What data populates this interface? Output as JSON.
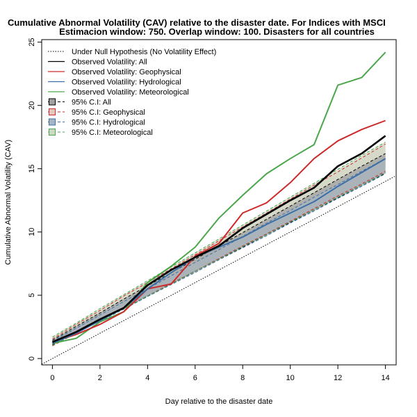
{
  "chart_data": {
    "type": "line",
    "title": "Cumulative Abnormal Volatility (CAV) relative to the disaster date. For Indices with MSCI",
    "subtitle": "Estimacion window: 750. Overlap window: 100. Disasters for all countries",
    "xlabel": "Day relative to the disaster date",
    "ylabel": "Cumulative Abnormal Volatility (CAV)",
    "xlim": [
      -0.45,
      14.45
    ],
    "ylim": [
      -0.5,
      25.2
    ],
    "xticks": [
      "0",
      "2",
      "4",
      "6",
      "8",
      "10",
      "12",
      "14"
    ],
    "yticks": [
      "0",
      "5",
      "10",
      "15",
      "20",
      "25"
    ],
    "grid": false,
    "legend_position": "top-left",
    "x": [
      0,
      1,
      2,
      3,
      4,
      5,
      6,
      7,
      8,
      9,
      10,
      11,
      12,
      13,
      14
    ],
    "null_hypothesis": {
      "name": "Under Null Hypothesis (No Volatility Effect)",
      "slope": 1,
      "color": "#000000"
    },
    "series": [
      {
        "name": "Observed Volatility: All",
        "color": "#000000",
        "values": [
          1.3,
          2.1,
          3.1,
          4.0,
          5.8,
          7.0,
          8.0,
          8.9,
          10.3,
          11.4,
          12.5,
          13.5,
          15.2,
          16.2,
          17.6
        ]
      },
      {
        "name": "Observed Volatility: Geophysical",
        "color": "#cc2a2a",
        "values": [
          1.3,
          1.9,
          2.7,
          3.7,
          5.5,
          5.9,
          8.1,
          9.1,
          11.5,
          12.3,
          13.9,
          15.8,
          17.2,
          18.1,
          18.8
        ]
      },
      {
        "name": "Observed Volatility: Hydrological",
        "color": "#3b6fa8",
        "values": [
          1.2,
          2.0,
          3.0,
          4.0,
          5.5,
          6.8,
          8.0,
          8.8,
          9.6,
          10.6,
          11.5,
          12.4,
          13.6,
          14.7,
          15.8
        ]
      },
      {
        "name": "Observed Volatility: Meteorological",
        "color": "#4aa64a",
        "values": [
          1.2,
          1.6,
          2.9,
          3.7,
          6.0,
          7.3,
          8.8,
          11.1,
          12.9,
          14.6,
          15.8,
          16.9,
          21.6,
          22.2,
          24.2
        ]
      }
    ],
    "confidence_intervals": [
      {
        "name": "95% C.I: All",
        "color": "#000000",
        "fill": "#a0a0a0",
        "lower": [
          1.1,
          2.05,
          3.0,
          3.95,
          4.95,
          5.9,
          6.9,
          7.85,
          8.8,
          9.8,
          10.75,
          11.75,
          12.7,
          13.7,
          14.65
        ],
        "upper": [
          1.45,
          2.55,
          3.6,
          4.7,
          5.75,
          6.8,
          7.85,
          8.9,
          9.95,
          11.0,
          12.05,
          13.1,
          14.15,
          15.2,
          16.2
        ]
      },
      {
        "name": "95% C.I: Geophysical",
        "color": "#cc2a2a",
        "fill": "#e2c8bf",
        "lower": [
          1.0,
          2.0,
          3.0,
          3.95,
          4.95,
          5.95,
          6.9,
          7.9,
          8.9,
          9.85,
          10.85,
          11.85,
          12.85,
          13.8,
          14.8
        ],
        "upper": [
          1.55,
          2.7,
          3.8,
          4.95,
          6.0,
          7.1,
          8.2,
          9.3,
          10.4,
          11.5,
          12.6,
          13.7,
          14.75,
          15.85,
          16.95
        ]
      },
      {
        "name": "95% C.I: Hydrological",
        "color": "#3b6fa8",
        "fill": "#a9b4bf",
        "lower": [
          1.05,
          2.0,
          2.95,
          3.9,
          4.9,
          5.85,
          6.8,
          7.8,
          8.75,
          9.7,
          10.7,
          11.65,
          12.65,
          13.6,
          14.6
        ],
        "upper": [
          1.35,
          2.4,
          3.45,
          4.5,
          5.5,
          6.55,
          7.6,
          8.6,
          9.65,
          10.7,
          11.7,
          12.75,
          13.75,
          14.8,
          15.8
        ]
      },
      {
        "name": "95% C.I: Meteorological",
        "color": "#4aa64a",
        "fill": "#cfd8c6",
        "lower": [
          1.05,
          2.0,
          3.0,
          3.95,
          4.95,
          5.9,
          6.9,
          7.85,
          8.85,
          9.8,
          10.8,
          11.75,
          12.75,
          13.7,
          14.7
        ],
        "upper": [
          1.7,
          2.8,
          3.95,
          5.05,
          6.15,
          7.25,
          8.35,
          9.45,
          10.55,
          11.65,
          12.75,
          13.85,
          14.95,
          16.05,
          17.1
        ]
      }
    ]
  }
}
